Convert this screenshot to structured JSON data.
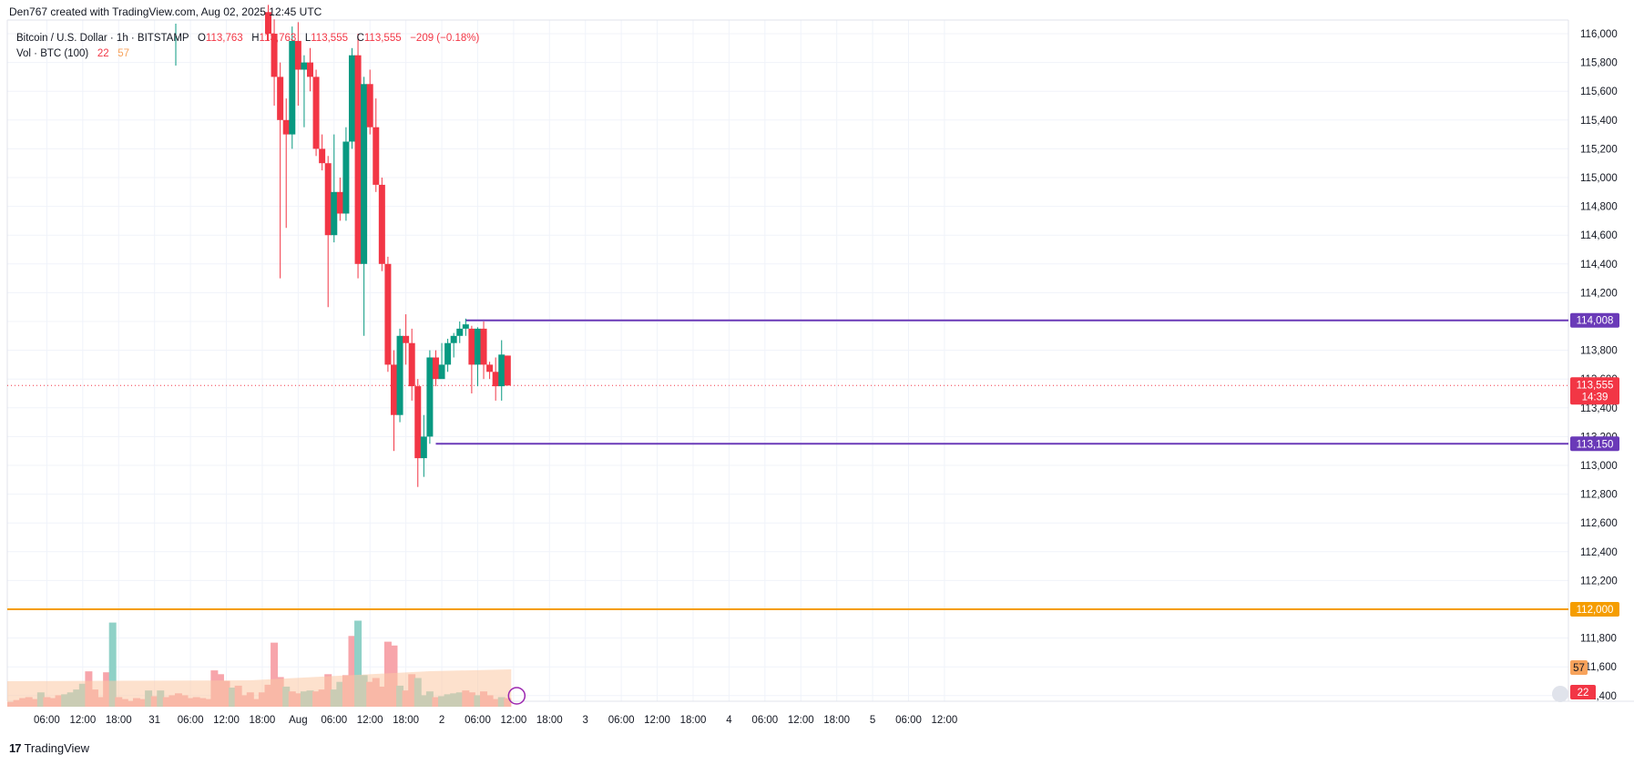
{
  "header": {
    "author_line": "Den767 created with TradingView.com, Aug 02, 2025 12:45 UTC"
  },
  "legend": {
    "symbol": "Bitcoin / U.S. Dollar · 1h · BITSTAMP",
    "o_label": "O",
    "o_val": "113,763",
    "h_label": "H",
    "h_val": "113,763",
    "l_label": "L",
    "l_val": "113,555",
    "c_label": "C",
    "c_val": "113,555",
    "change": "−209 (−0.18%)",
    "vol_label": "Vol · BTC (100)",
    "vol_val1": "22",
    "vol_val2": "57"
  },
  "brand": {
    "name": "TradingView",
    "logo": "tradingview-logo"
  },
  "colors": {
    "up": "#089981",
    "down": "#f23645",
    "level_line": "#6a3ab8",
    "support_line": "#f59d00",
    "price_line": "#f23645",
    "grid": "#f0f3fa",
    "vol_up": "#8fd1c7",
    "vol_down": "#f7a5ab",
    "vol_ma_fill": "#fcc9a4"
  },
  "chart_data": {
    "type": "candlestick",
    "symbol": "BTCUSD",
    "interval": "1h",
    "ylim": [
      111300,
      116100
    ],
    "y_ticks": [
      111400,
      111600,
      111800,
      112000,
      112200,
      112400,
      112600,
      112800,
      113000,
      113200,
      113400,
      113600,
      113800,
      114000,
      114200,
      114400,
      114600,
      114800,
      115000,
      115200,
      115400,
      115600,
      115800,
      116000
    ],
    "x_ticks": [
      "06:00",
      "12:00",
      "18:00",
      "31",
      "06:00",
      "12:00",
      "18:00",
      "Aug",
      "06:00",
      "12:00",
      "18:00",
      "2",
      "06:00",
      "12:00",
      "18:00",
      "3",
      "06:00",
      "12:00",
      "18:00",
      "4",
      "06:00",
      "12:00",
      "18:00",
      "5",
      "06:00",
      "12:00"
    ],
    "x_tick_hours": [
      6,
      12,
      18,
      24,
      30,
      36,
      42,
      48,
      54,
      60,
      66,
      72,
      78,
      84,
      90,
      96,
      102,
      108,
      114,
      120,
      126,
      132,
      138,
      144,
      150,
      156
    ],
    "candles": [
      {
        "h": 43,
        "o": 116150,
        "hi": 116200,
        "lo": 115950,
        "c": 116000
      },
      {
        "h": 44,
        "o": 116000,
        "hi": 116100,
        "lo": 115500,
        "c": 115700
      },
      {
        "h": 45,
        "o": 115700,
        "hi": 115800,
        "lo": 114300,
        "c": 115400
      },
      {
        "h": 46,
        "o": 115400,
        "hi": 115550,
        "lo": 114650,
        "c": 115300
      },
      {
        "h": 47,
        "o": 115300,
        "hi": 116050,
        "lo": 115200,
        "c": 115950
      },
      {
        "h": 48,
        "o": 115950,
        "hi": 116080,
        "lo": 115500,
        "c": 115750
      },
      {
        "h": 49,
        "o": 115750,
        "hi": 115850,
        "lo": 115350,
        "c": 115800
      },
      {
        "h": 50,
        "o": 115800,
        "hi": 115900,
        "lo": 115600,
        "c": 115700
      },
      {
        "h": 51,
        "o": 115700,
        "hi": 115750,
        "lo": 115150,
        "c": 115200
      },
      {
        "h": 52,
        "o": 115200,
        "hi": 115300,
        "lo": 115050,
        "c": 115100
      },
      {
        "h": 53,
        "o": 115100,
        "hi": 115150,
        "lo": 114100,
        "c": 114600
      },
      {
        "h": 54,
        "o": 114600,
        "hi": 115300,
        "lo": 114550,
        "c": 114900
      },
      {
        "h": 55,
        "o": 114900,
        "hi": 115000,
        "lo": 114700,
        "c": 114750
      },
      {
        "h": 56,
        "o": 114750,
        "hi": 115350,
        "lo": 114700,
        "c": 115250
      },
      {
        "h": 57,
        "o": 115250,
        "hi": 115900,
        "lo": 115200,
        "c": 115850
      },
      {
        "h": 58,
        "o": 115850,
        "hi": 116000,
        "lo": 114300,
        "c": 114400
      },
      {
        "h": 59,
        "o": 114400,
        "hi": 115700,
        "lo": 113900,
        "c": 115650
      },
      {
        "h": 60,
        "o": 115650,
        "hi": 115750,
        "lo": 115300,
        "c": 115350
      },
      {
        "h": 61,
        "o": 115350,
        "hi": 115550,
        "lo": 114900,
        "c": 114950
      },
      {
        "h": 62,
        "o": 114950,
        "hi": 115000,
        "lo": 114350,
        "c": 114400
      },
      {
        "h": 63,
        "o": 114400,
        "hi": 114450,
        "lo": 113650,
        "c": 113700
      },
      {
        "h": 64,
        "o": 113700,
        "hi": 113800,
        "lo": 113100,
        "c": 113350
      },
      {
        "h": 65,
        "o": 113350,
        "hi": 113950,
        "lo": 113300,
        "c": 113900
      },
      {
        "h": 66,
        "o": 113900,
        "hi": 114050,
        "lo": 113700,
        "c": 113850
      },
      {
        "h": 67,
        "o": 113850,
        "hi": 113950,
        "lo": 113450,
        "c": 113550
      },
      {
        "h": 68,
        "o": 113550,
        "hi": 113600,
        "lo": 112850,
        "c": 113050
      },
      {
        "h": 69,
        "o": 113050,
        "hi": 113350,
        "lo": 112920,
        "c": 113200
      },
      {
        "h": 70,
        "o": 113200,
        "hi": 113800,
        "lo": 113150,
        "c": 113750
      },
      {
        "h": 71,
        "o": 113750,
        "hi": 113800,
        "lo": 113550,
        "c": 113600
      },
      {
        "h": 72,
        "o": 113600,
        "hi": 113850,
        "lo": 113620,
        "c": 113700
      },
      {
        "h": 73,
        "o": 113700,
        "hi": 113880,
        "lo": 113650,
        "c": 113850
      },
      {
        "h": 74,
        "o": 113850,
        "hi": 113920,
        "lo": 113750,
        "c": 113900
      },
      {
        "h": 75,
        "o": 113900,
        "hi": 114000,
        "lo": 113850,
        "c": 113950
      },
      {
        "h": 76,
        "o": 113950,
        "hi": 114020,
        "lo": 113900,
        "c": 113980
      },
      {
        "h": 77,
        "o": 113950,
        "hi": 113970,
        "lo": 113500,
        "c": 113700
      },
      {
        "h": 78,
        "o": 113700,
        "hi": 113960,
        "lo": 113550,
        "c": 113950
      },
      {
        "h": 79,
        "o": 113950,
        "hi": 114000,
        "lo": 113600,
        "c": 113700
      },
      {
        "h": 80,
        "o": 113700,
        "hi": 113720,
        "lo": 113600,
        "c": 113650
      },
      {
        "h": 81,
        "o": 113650,
        "hi": 113750,
        "lo": 113450,
        "c": 113550
      },
      {
        "h": 82,
        "o": 113550,
        "hi": 113870,
        "lo": 113450,
        "c": 113770
      },
      {
        "h": 83,
        "o": 113763,
        "hi": 113763,
        "lo": 113555,
        "c": 113555
      }
    ],
    "volume": [
      {
        "h": 0,
        "v": 5,
        "up": false
      },
      {
        "h": 1,
        "v": 7,
        "up": false
      },
      {
        "h": 2,
        "v": 9,
        "up": false
      },
      {
        "h": 3,
        "v": 10,
        "up": false
      },
      {
        "h": 4,
        "v": 8,
        "up": false
      },
      {
        "h": 5,
        "v": 15,
        "up": true
      },
      {
        "h": 6,
        "v": 10,
        "up": false
      },
      {
        "h": 7,
        "v": 9,
        "up": false
      },
      {
        "h": 8,
        "v": 12,
        "up": false
      },
      {
        "h": 9,
        "v": 13,
        "up": true
      },
      {
        "h": 10,
        "v": 15,
        "up": true
      },
      {
        "h": 11,
        "v": 18,
        "up": true
      },
      {
        "h": 12,
        "v": 24,
        "up": true
      },
      {
        "h": 13,
        "v": 37,
        "up": false
      },
      {
        "h": 14,
        "v": 18,
        "up": false
      },
      {
        "h": 15,
        "v": 10,
        "up": false
      },
      {
        "h": 16,
        "v": 36,
        "up": false
      },
      {
        "h": 17,
        "v": 88,
        "up": true
      },
      {
        "h": 18,
        "v": 10,
        "up": false
      },
      {
        "h": 19,
        "v": 8,
        "up": false
      },
      {
        "h": 20,
        "v": 6,
        "up": false
      },
      {
        "h": 21,
        "v": 9,
        "up": false
      },
      {
        "h": 22,
        "v": 8,
        "up": false
      },
      {
        "h": 23,
        "v": 17,
        "up": true
      },
      {
        "h": 24,
        "v": 11,
        "up": false
      },
      {
        "h": 25,
        "v": 17,
        "up": true
      },
      {
        "h": 26,
        "v": 10,
        "up": false
      },
      {
        "h": 27,
        "v": 12,
        "up": false
      },
      {
        "h": 28,
        "v": 14,
        "up": false
      },
      {
        "h": 29,
        "v": 12,
        "up": false
      },
      {
        "h": 30,
        "v": 9,
        "up": false
      },
      {
        "h": 31,
        "v": 10,
        "up": false
      },
      {
        "h": 32,
        "v": 9,
        "up": false
      },
      {
        "h": 33,
        "v": 8,
        "up": false
      },
      {
        "h": 34,
        "v": 38,
        "up": false
      },
      {
        "h": 35,
        "v": 34,
        "up": false
      },
      {
        "h": 36,
        "v": 27,
        "up": false
      },
      {
        "h": 37,
        "v": 20,
        "up": true
      },
      {
        "h": 38,
        "v": 22,
        "up": false
      },
      {
        "h": 39,
        "v": 12,
        "up": false
      },
      {
        "h": 40,
        "v": 15,
        "up": false
      },
      {
        "h": 41,
        "v": 8,
        "up": false
      },
      {
        "h": 42,
        "v": 15,
        "up": false
      },
      {
        "h": 43,
        "v": 23,
        "up": false
      },
      {
        "h": 44,
        "v": 67,
        "up": false
      },
      {
        "h": 45,
        "v": 31,
        "up": false
      },
      {
        "h": 46,
        "v": 21,
        "up": true
      },
      {
        "h": 47,
        "v": 16,
        "up": false
      },
      {
        "h": 48,
        "v": 14,
        "up": false
      },
      {
        "h": 49,
        "v": 16,
        "up": true
      },
      {
        "h": 50,
        "v": 17,
        "up": true
      },
      {
        "h": 51,
        "v": 16,
        "up": false
      },
      {
        "h": 52,
        "v": 18,
        "up": false
      },
      {
        "h": 53,
        "v": 34,
        "up": false
      },
      {
        "h": 54,
        "v": 18,
        "up": true
      },
      {
        "h": 55,
        "v": 26,
        "up": true
      },
      {
        "h": 56,
        "v": 33,
        "up": false
      },
      {
        "h": 57,
        "v": 74,
        "up": false
      },
      {
        "h": 58,
        "v": 90,
        "up": true
      },
      {
        "h": 59,
        "v": 33,
        "up": true
      },
      {
        "h": 60,
        "v": 26,
        "up": false
      },
      {
        "h": 61,
        "v": 30,
        "up": false
      },
      {
        "h": 62,
        "v": 21,
        "up": false
      },
      {
        "h": 63,
        "v": 68,
        "up": false
      },
      {
        "h": 64,
        "v": 64,
        "up": false
      },
      {
        "h": 65,
        "v": 22,
        "up": true
      },
      {
        "h": 66,
        "v": 17,
        "up": false
      },
      {
        "h": 67,
        "v": 34,
        "up": false
      },
      {
        "h": 68,
        "v": 30,
        "up": true
      },
      {
        "h": 69,
        "v": 12,
        "up": true
      },
      {
        "h": 70,
        "v": 16,
        "up": true
      },
      {
        "h": 71,
        "v": 10,
        "up": false
      },
      {
        "h": 72,
        "v": 11,
        "up": true
      },
      {
        "h": 73,
        "v": 13,
        "up": true
      },
      {
        "h": 74,
        "v": 14,
        "up": true
      },
      {
        "h": 75,
        "v": 15,
        "up": true
      },
      {
        "h": 76,
        "v": 17,
        "up": false
      },
      {
        "h": 77,
        "v": 15,
        "up": false
      },
      {
        "h": 78,
        "v": 12,
        "up": true
      },
      {
        "h": 79,
        "v": 16,
        "up": false
      },
      {
        "h": 80,
        "v": 12,
        "up": false
      },
      {
        "h": 81,
        "v": 8,
        "up": false
      },
      {
        "h": 82,
        "v": 10,
        "up": true
      },
      {
        "h": 83,
        "v": 9,
        "up": false
      }
    ],
    "volume_ma": 57,
    "horizontal_lines": [
      {
        "price": 114008,
        "label": "114,008",
        "color": "#6a3ab8",
        "from_hour": 76
      },
      {
        "price": 113150,
        "label": "113,150",
        "color": "#6a3ab8",
        "from_hour": 71
      },
      {
        "price": 112000,
        "label": "112,000",
        "color": "#f59d00",
        "from_hour": -1
      }
    ],
    "last_price": {
      "price": 113555,
      "label": "113,555",
      "countdown": "14:39"
    },
    "volume_labels": {
      "ma": "57",
      "current": "22"
    }
  }
}
